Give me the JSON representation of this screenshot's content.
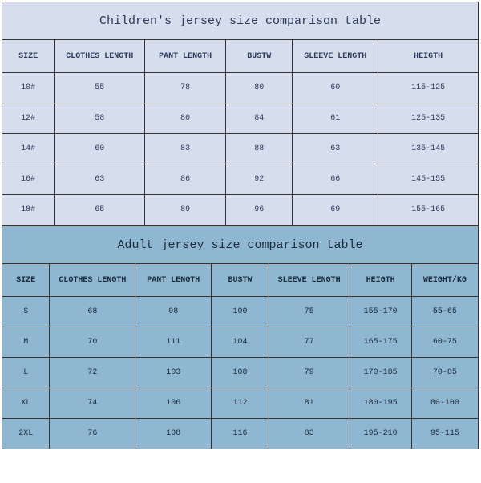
{
  "children_table": {
    "type": "table",
    "title": "Children's jersey size comparison table",
    "title_fontsize": 15,
    "header_fontsize": 10,
    "cell_fontsize": 10,
    "title_bg": "#d6dded",
    "header_bg": "#d6dded",
    "row_bg": "#d6dded",
    "text_color": "#2c3a5a",
    "border_color": "#333333",
    "columns": [
      "SIZE",
      "CLOTHES LENGTH",
      "PANT LENGTH",
      "BUSTW",
      "SLEEVE LENGTH",
      "HEIGTH"
    ],
    "col_widths_pct": [
      11,
      19,
      17,
      14,
      18,
      21
    ],
    "rows": [
      [
        "10#",
        "55",
        "78",
        "80",
        "60",
        "115-125"
      ],
      [
        "12#",
        "58",
        "80",
        "84",
        "61",
        "125-135"
      ],
      [
        "14#",
        "60",
        "83",
        "88",
        "63",
        "135-145"
      ],
      [
        "16#",
        "63",
        "86",
        "92",
        "66",
        "145-155"
      ],
      [
        "18#",
        "65",
        "89",
        "96",
        "69",
        "155-165"
      ]
    ]
  },
  "adult_table": {
    "type": "table",
    "title": "Adult jersey size comparison table",
    "title_fontsize": 15,
    "header_fontsize": 10,
    "cell_fontsize": 10,
    "title_bg": "#8fb7d1",
    "header_bg": "#8fb7d1",
    "row_bg": "#8fb7d1",
    "text_color": "#1a2a3a",
    "border_color": "#333333",
    "columns": [
      "SIZE",
      "CLOTHES LENGTH",
      "PANT LENGTH",
      "BUSTW",
      "SLEEVE LENGTH",
      "HEIGTH",
      "WEIGHT/KG"
    ],
    "col_widths_pct": [
      10,
      18,
      16,
      12,
      17,
      13,
      14
    ],
    "rows": [
      [
        "S",
        "68",
        "98",
        "100",
        "75",
        "155-170",
        "55-65"
      ],
      [
        "M",
        "70",
        "111",
        "104",
        "77",
        "165-175",
        "60-75"
      ],
      [
        "L",
        "72",
        "103",
        "108",
        "79",
        "170-185",
        "70-85"
      ],
      [
        "XL",
        "74",
        "106",
        "112",
        "81",
        "180-195",
        "80-100"
      ],
      [
        "2XL",
        "76",
        "108",
        "116",
        "83",
        "195-210",
        "95-115"
      ]
    ]
  }
}
